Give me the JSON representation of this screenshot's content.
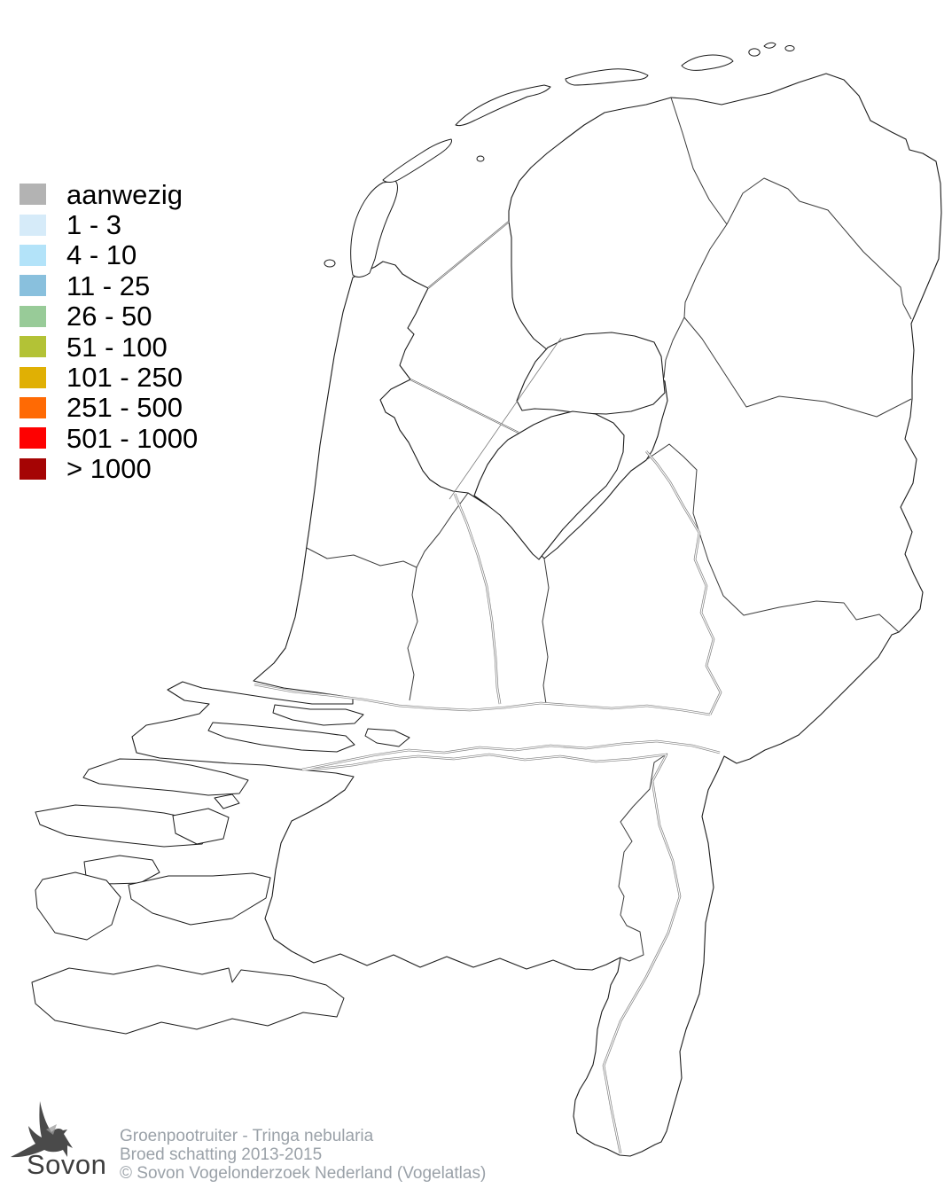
{
  "legend": {
    "items": [
      {
        "label": "aanwezig",
        "color": "#b3b3b3"
      },
      {
        "label": "1 - 3",
        "color": "#d6ebf9"
      },
      {
        "label": "4 - 10",
        "color": "#b3e3f9"
      },
      {
        "label": "11 - 25",
        "color": "#89c0dd"
      },
      {
        "label": "26 - 50",
        "color": "#98cb98"
      },
      {
        "label": "51 - 100",
        "color": "#b3c236"
      },
      {
        "label": "101 - 250",
        "color": "#e0b004"
      },
      {
        "label": "251 - 500",
        "color": "#ff6a04"
      },
      {
        "label": "501 - 1000",
        "color": "#fe0101"
      },
      {
        "label": "> 1000",
        "color": "#a50404"
      }
    ]
  },
  "map": {
    "outline_color": "#1c1c1c",
    "province_border_color": "#3c3c3c",
    "river_color": "#7e7e7e",
    "background_color": "#ffffff"
  },
  "footer": {
    "logo_text": "Sovon",
    "logo_color": "#3e3e3e",
    "credits_color": "#9aa1a8",
    "lines": [
      "Groenpootruiter - Tringa nebularia",
      "Broed schatting 2013-2015",
      "© Sovon Vogelonderzoek Nederland (Vogelatlas)"
    ]
  }
}
